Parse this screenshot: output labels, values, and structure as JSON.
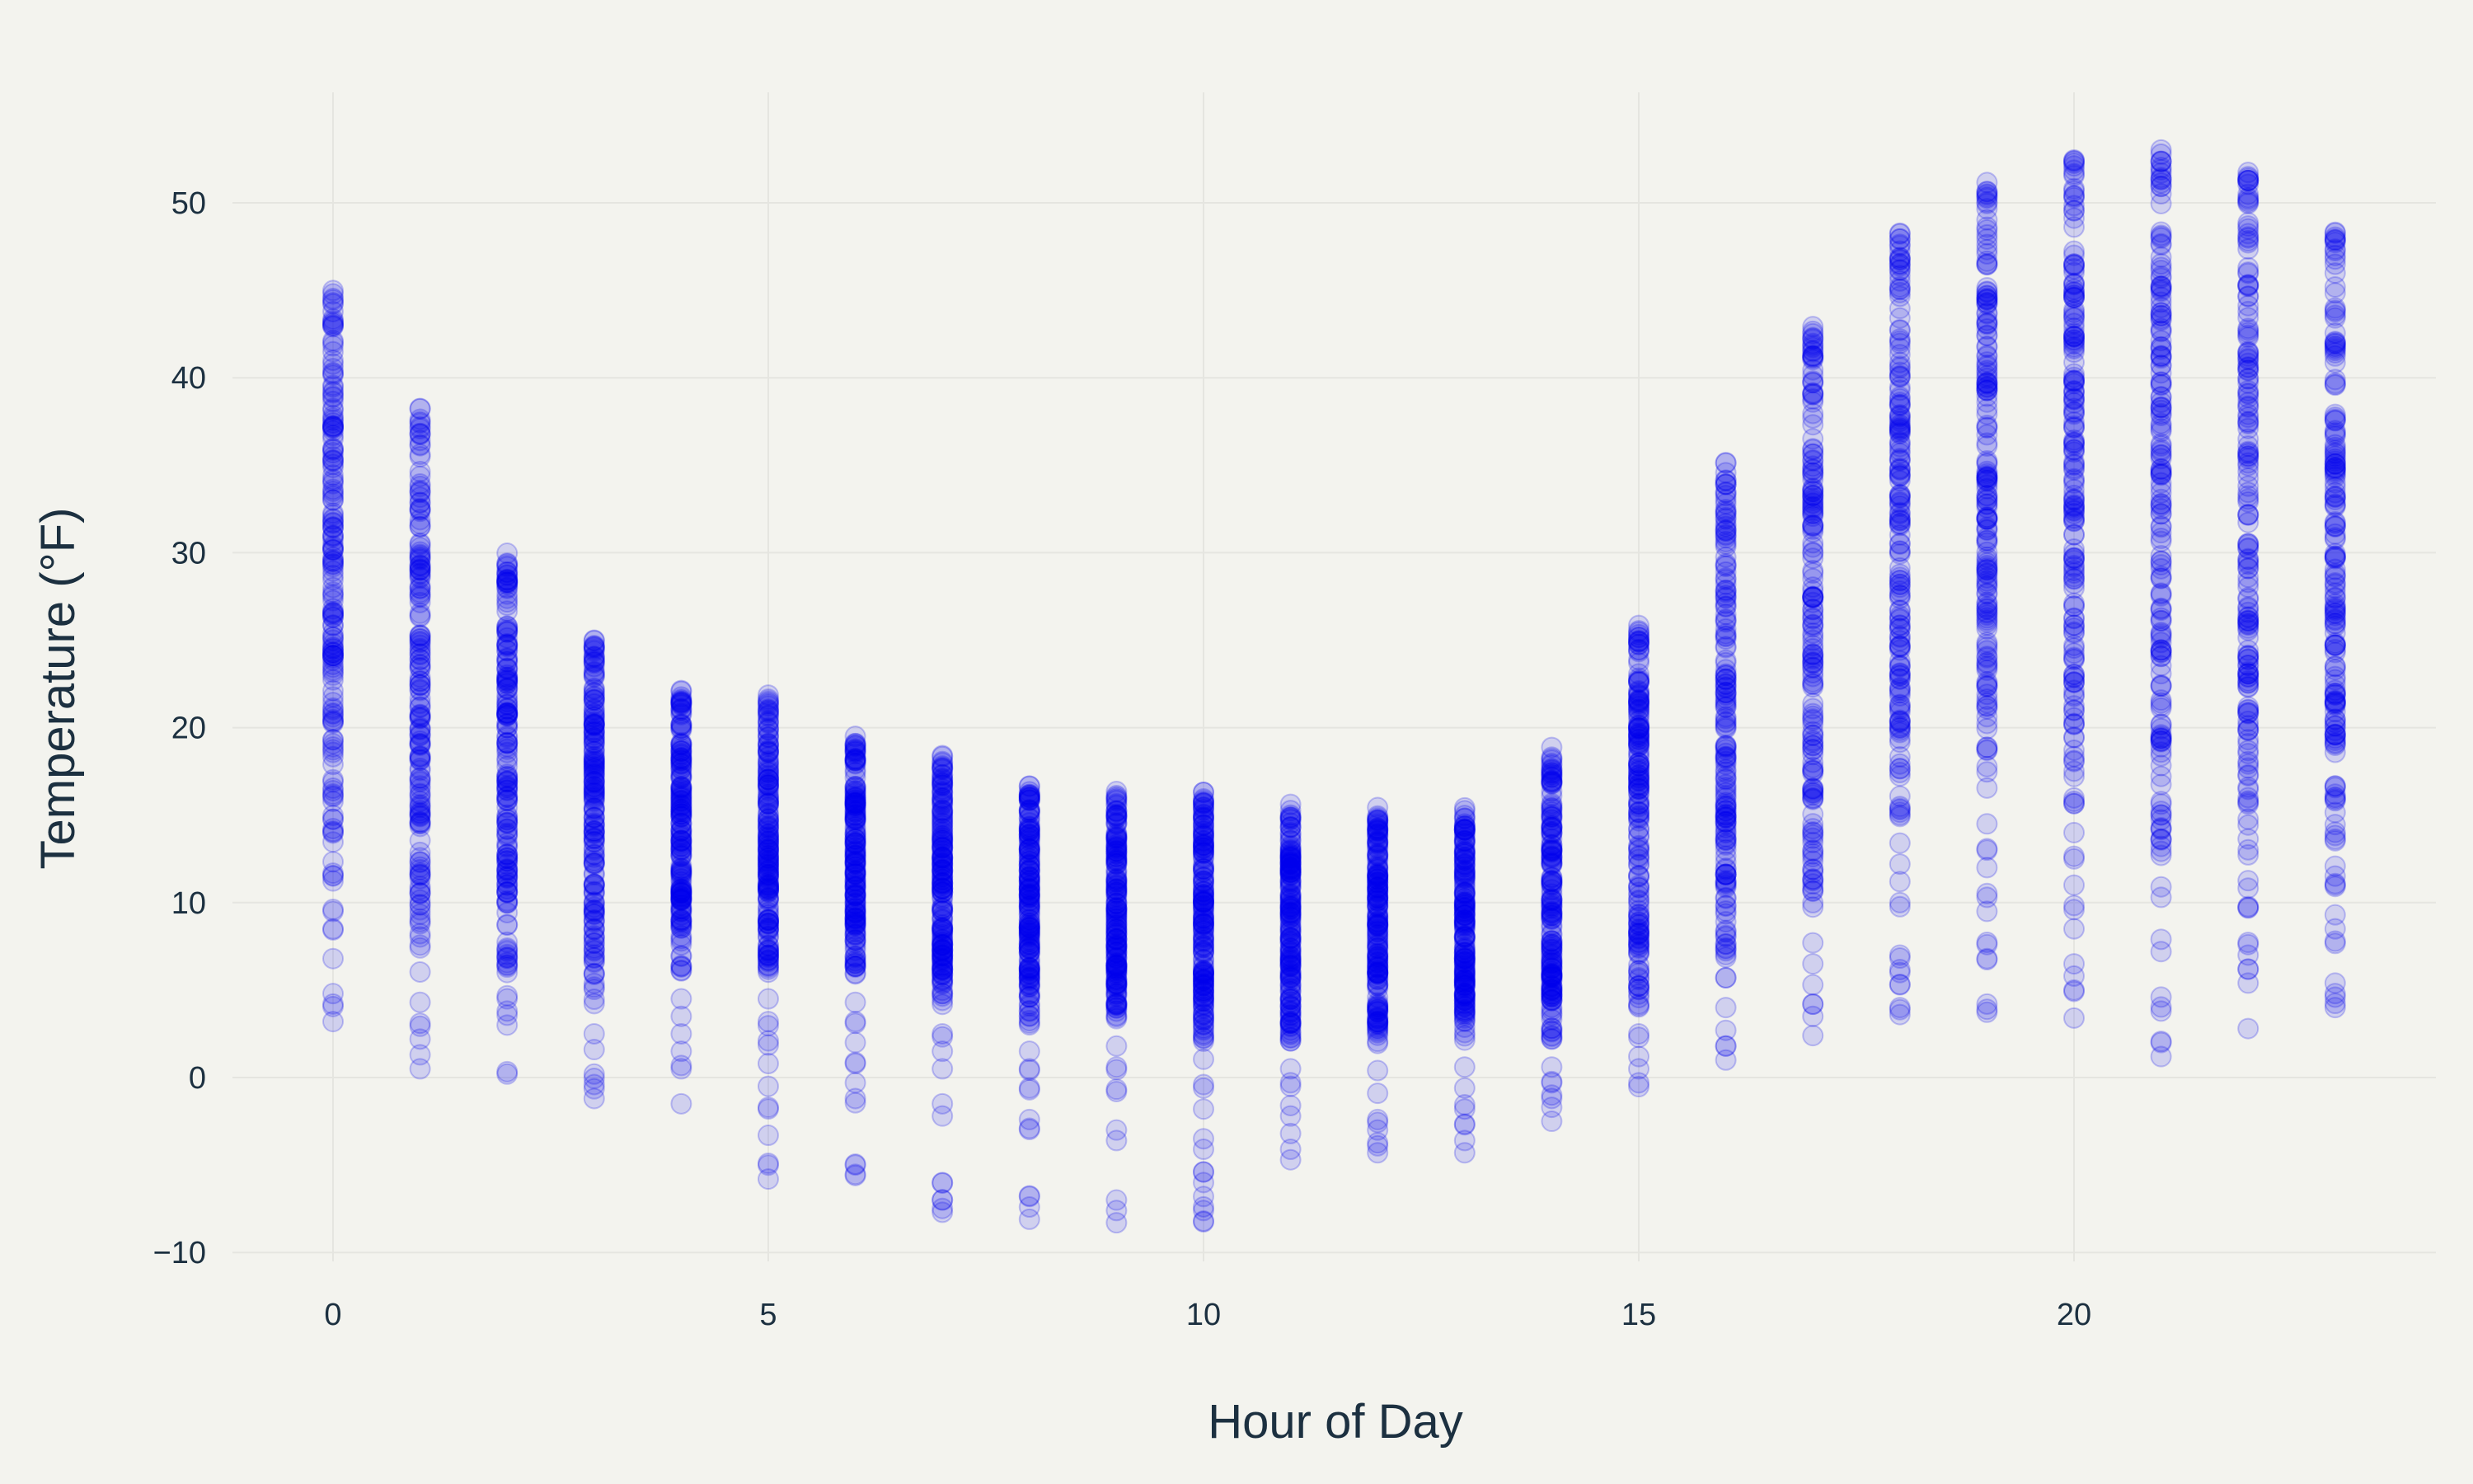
{
  "chart_data": {
    "type": "scatter",
    "title": "",
    "xlabel": "Hour of Day",
    "ylabel": "Temperature (°F)",
    "xlim": [
      -1.2,
      24.0
    ],
    "ylim": [
      -11.5,
      56.0
    ],
    "x_ticks": [
      0,
      5,
      10,
      15,
      20
    ],
    "y_ticks": [
      -10,
      0,
      10,
      20,
      30,
      40,
      50
    ],
    "x_tick_labels": [
      "0",
      "5",
      "10",
      "15",
      "20"
    ],
    "y_tick_labels": [
      "−10",
      "0",
      "10",
      "20",
      "30",
      "40",
      "50"
    ],
    "grid": true,
    "legend": "none",
    "colors": {
      "background": "#f3f3ee",
      "grid": "#e5e5e0",
      "text": "#1c3040",
      "point_fill": "#0000ee",
      "point_fill_opacity": 0.14,
      "point_stroke_opacity": 0.22
    },
    "point_summary": [
      {
        "hour": 0,
        "min": 3.2,
        "max": 45.0,
        "outliers": [
          3.2,
          4.2,
          4.8,
          6.8,
          8.5,
          9.5
        ]
      },
      {
        "hour": 1,
        "min": 0.5,
        "max": 38.3,
        "outliers": [
          0.5,
          1.3,
          2.2,
          3.1,
          4.3
        ]
      },
      {
        "hour": 2,
        "min": 0.2,
        "max": 30.0,
        "outliers": [
          0.2,
          3.0,
          3.8,
          4.5
        ]
      },
      {
        "hour": 3,
        "min": -1.2,
        "max": 25.4,
        "outliers": [
          -1.2,
          -0.4,
          0.2,
          1.6,
          2.5
        ]
      },
      {
        "hour": 4,
        "min": -1.5,
        "max": 22.2,
        "outliers": [
          -1.5,
          0.5,
          1.5,
          2.5,
          3.5,
          4.5
        ]
      },
      {
        "hour": 5,
        "min": -5.8,
        "max": 22.0,
        "outliers": [
          -5.8,
          -4.9,
          -3.3,
          -1.7,
          -0.5,
          0.8,
          2.1,
          3.2,
          4.5
        ]
      },
      {
        "hour": 6,
        "min": -5.6,
        "max": 19.6,
        "outliers": [
          -5.6,
          -5.0,
          -1.2,
          -0.3,
          0.8,
          2.0,
          3.1,
          4.3
        ]
      },
      {
        "hour": 7,
        "min": -7.7,
        "max": 18.6,
        "outliers": [
          -7.7,
          -7.0,
          -6.0,
          -2.2,
          -1.5,
          0.5,
          1.5,
          2.5
        ]
      },
      {
        "hour": 8,
        "min": -8.1,
        "max": 16.7,
        "outliers": [
          -8.1,
          -7.4,
          -6.8,
          -2.9,
          -2.4,
          -0.6,
          0.5,
          1.5
        ]
      },
      {
        "hour": 9,
        "min": -8.3,
        "max": 16.5,
        "outliers": [
          -8.3,
          -7.6,
          -7.0,
          -3.6,
          -3.0,
          -0.8,
          0.6,
          1.8
        ]
      },
      {
        "hour": 10,
        "min": -8.2,
        "max": 16.7,
        "outliers": [
          -8.2,
          -7.6,
          -6.8,
          -6.0,
          -5.4,
          -4.1,
          -3.5,
          -1.8,
          -0.6
        ]
      },
      {
        "hour": 11,
        "min": -4.7,
        "max": 15.8,
        "outliers": [
          -4.7,
          -4.1,
          -3.2,
          -2.2,
          -1.6,
          -0.5,
          0.5
        ]
      },
      {
        "hour": 12,
        "min": -4.3,
        "max": 15.5,
        "outliers": [
          -4.3,
          -3.9,
          -3.0,
          -2.4,
          -0.9,
          0.4
        ]
      },
      {
        "hour": 13,
        "min": -4.3,
        "max": 15.5,
        "outliers": [
          -4.3,
          -3.6,
          -2.7,
          -1.8,
          -0.6,
          0.6
        ]
      },
      {
        "hour": 14,
        "min": -2.5,
        "max": 18.9,
        "outliers": [
          -2.5,
          -1.7,
          -1.0,
          -0.3,
          0.6
        ]
      },
      {
        "hour": 15,
        "min": -0.3,
        "max": 26.2,
        "outliers": [
          -0.3,
          0.5,
          1.2,
          2.5
        ]
      },
      {
        "hour": 16,
        "min": 1.0,
        "max": 35.2,
        "outliers": [
          1.0,
          1.8,
          2.7,
          4.0
        ]
      },
      {
        "hour": 17,
        "min": 2.4,
        "max": 43.0,
        "outliers": [
          2.4,
          3.5,
          4.2,
          5.3,
          6.5,
          7.7
        ]
      },
      {
        "hour": 18,
        "min": 3.6,
        "max": 48.5,
        "outliers": [
          3.6,
          4.0,
          5.3,
          6.0,
          7.0,
          10.0,
          11.2,
          12.2,
          13.4
        ]
      },
      {
        "hour": 19,
        "min": 3.9,
        "max": 51.2,
        "outliers": [
          3.9,
          4.2,
          6.8,
          7.6,
          9.5,
          10.3,
          12.0,
          13.0,
          14.5
        ]
      },
      {
        "hour": 20,
        "min": 3.4,
        "max": 52.8,
        "outliers": [
          3.4,
          5.0,
          5.8,
          6.5,
          8.5,
          9.6,
          11.0,
          12.5,
          14.0
        ]
      },
      {
        "hour": 21,
        "min": 1.2,
        "max": 53.2,
        "outliers": [
          1.2,
          2.0,
          3.8,
          4.6,
          7.2,
          7.9,
          10.3,
          10.9
        ]
      },
      {
        "hour": 22,
        "min": 2.8,
        "max": 51.8,
        "outliers": [
          2.8,
          5.4,
          6.2,
          7.0,
          7.6
        ]
      },
      {
        "hour": 23,
        "min": 4.0,
        "max": 48.6,
        "outliers": [
          4.0,
          4.8,
          5.4,
          7.8,
          8.5,
          9.3
        ]
      }
    ]
  }
}
